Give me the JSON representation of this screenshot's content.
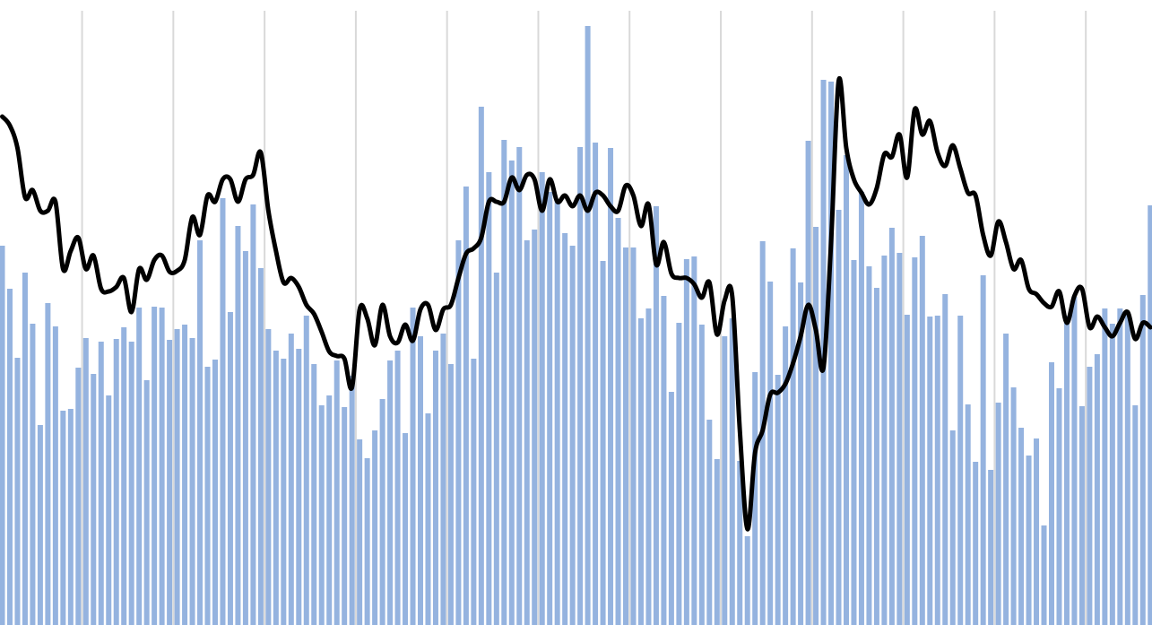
{
  "chart_data": {
    "type": "bar",
    "categories": [
      null,
      null,
      null,
      null,
      null,
      null,
      null,
      null,
      null,
      null,
      null,
      null,
      null,
      null,
      null,
      null,
      null,
      null,
      null,
      null,
      null,
      null,
      null,
      null,
      null,
      null,
      null,
      null,
      null,
      null,
      null,
      null,
      null,
      null,
      null,
      null,
      null,
      null,
      null,
      null,
      null,
      null,
      null,
      null,
      null,
      null,
      null,
      null,
      null,
      null,
      null,
      null,
      null,
      null,
      null,
      null,
      null,
      null,
      null,
      null,
      null,
      null,
      null,
      null,
      null,
      null,
      null,
      null,
      null,
      null,
      null,
      null,
      null,
      null,
      null,
      null,
      null,
      null,
      null,
      null,
      null,
      null,
      null,
      null,
      null,
      null,
      null,
      null,
      null,
      null,
      null,
      null,
      null,
      null,
      null,
      null,
      null,
      null,
      null,
      null,
      null,
      null,
      null,
      null,
      null,
      null,
      null,
      null,
      null,
      null,
      null,
      null,
      null,
      null,
      null,
      null,
      null,
      null,
      null,
      null,
      null,
      null,
      null,
      null,
      null,
      null,
      null,
      null,
      null,
      null,
      null,
      null,
      null,
      null,
      null,
      null,
      null,
      null,
      null,
      null,
      null,
      null,
      null,
      null,
      null,
      null,
      null,
      null,
      null,
      null,
      null,
      null
    ],
    "series": [
      {
        "type": "bar",
        "color": "#95b3df",
        "values": [
          423,
          375,
          298,
          393,
          336,
          223,
          359,
          333,
          239,
          241,
          287,
          320,
          280,
          316,
          256,
          319,
          332,
          316,
          354,
          273,
          355,
          354,
          318,
          330,
          335,
          320,
          429,
          288,
          296,
          476,
          349,
          445,
          417,
          469,
          398,
          330,
          306,
          297,
          325,
          308,
          345,
          291,
          245,
          256,
          295,
          243,
          278,
          207,
          186,
          217,
          252,
          295,
          306,
          214,
          354,
          322,
          236,
          306,
          325,
          291,
          429,
          489,
          297,
          578,
          505,
          393,
          541,
          518,
          533,
          429,
          441,
          505,
          483,
          473,
          437,
          423,
          533,
          668,
          538,
          406,
          532,
          454,
          421,
          421,
          342,
          353,
          467,
          367,
          260,
          337,
          408,
          411,
          335,
          229,
          185,
          322,
          342,
          183,
          99,
          282,
          428,
          383,
          279,
          333,
          420,
          382,
          540,
          444,
          608,
          606,
          463,
          524,
          407,
          483,
          400,
          376,
          412,
          443,
          415,
          346,
          410,
          434,
          344,
          345,
          369,
          217,
          345,
          246,
          182,
          390,
          173,
          248,
          325,
          265,
          220,
          189,
          208,
          111,
          293,
          264,
          345,
          366,
          244,
          288,
          302,
          353,
          336,
          353,
          349,
          245,
          368,
          468
        ]
      },
      {
        "type": "line",
        "color": "#000000",
        "values": [
          567,
          557,
          532,
          477,
          485,
          462,
          462,
          472,
          397,
          417,
          432,
          397,
          412,
          375,
          372,
          377,
          387,
          349,
          397,
          385,
          407,
          412,
          394,
          395,
          407,
          455,
          435,
          479,
          472,
          497,
          497,
          472,
          497,
          502,
          527,
          462,
          417,
          382,
          387,
          377,
          357,
          347,
          327,
          305,
          300,
          297,
          265,
          352,
          342,
          312,
          357,
          322,
          315,
          335,
          317,
          352,
          357,
          329,
          352,
          357,
          387,
          414,
          420,
          432,
          472,
          472,
          472,
          499,
          485,
          502,
          497,
          462,
          497,
          472,
          479,
          467,
          479,
          462,
          482,
          479,
          467,
          462,
          490,
          479,
          445,
          469,
          402,
          427,
          392,
          387,
          387,
          380,
          365,
          382,
          324,
          362,
          367,
          217,
          107,
          192,
          217,
          257,
          259,
          269,
          292,
          322,
          357,
          329,
          287,
          427,
          607,
          532,
          497,
          482,
          469,
          487,
          525,
          522,
          547,
          499,
          575,
          547,
          562,
          527,
          512,
          535,
          509,
          482,
          479,
          435,
          412,
          450,
          427,
          397,
          407,
          375,
          369,
          359,
          355,
          372,
          337,
          367,
          375,
          332,
          344,
          332,
          322,
          337,
          349,
          319,
          337,
          332
        ]
      }
    ],
    "ylim": [
      0,
      697
    ],
    "grid": true
  }
}
